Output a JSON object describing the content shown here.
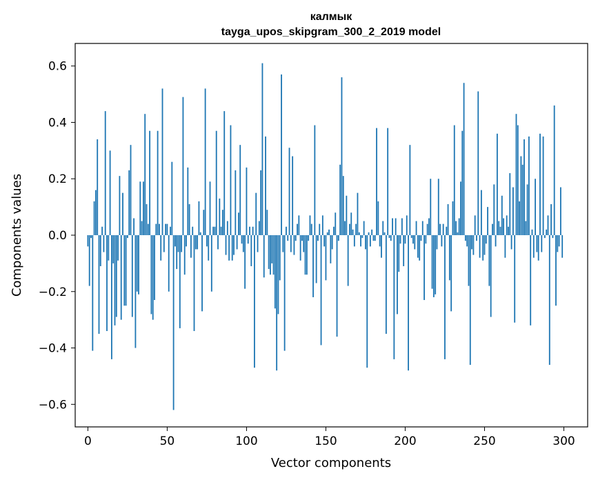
{
  "chart_data": {
    "type": "bar",
    "title_line1": "калмык",
    "title_line2": "tayga_upos_skipgram_300_2_2019 model",
    "xlabel": "Vector components",
    "ylabel": "Components values",
    "xlim": [
      -8,
      315
    ],
    "ylim": [
      -0.68,
      0.68
    ],
    "xticks": [
      0,
      50,
      100,
      150,
      200,
      250,
      300
    ],
    "xtick_labels": [
      "0",
      "50",
      "100",
      "150",
      "200",
      "250",
      "300"
    ],
    "yticks": [
      -0.6,
      -0.4,
      -0.2,
      0.0,
      0.2,
      0.4,
      0.6
    ],
    "ytick_labels": [
      "−0.6",
      "−0.4",
      "−0.2",
      "0.0",
      "0.2",
      "0.4",
      "0.6"
    ],
    "bar_color": "#1f77b4",
    "values": [
      -0.04,
      -0.18,
      -0.01,
      -0.41,
      0.12,
      0.16,
      0.34,
      -0.35,
      -0.11,
      0.03,
      -0.06,
      0.44,
      -0.34,
      -0.09,
      0.3,
      -0.44,
      -0.1,
      -0.32,
      -0.29,
      -0.09,
      0.21,
      -0.3,
      0.15,
      -0.25,
      -0.25,
      -0.01,
      0.23,
      0.32,
      -0.29,
      0.06,
      -0.4,
      -0.2,
      -0.21,
      0.19,
      0.05,
      0.19,
      0.43,
      0.11,
      0.04,
      0.37,
      -0.28,
      -0.3,
      -0.23,
      0.04,
      0.37,
      0.04,
      -0.09,
      0.52,
      -0.06,
      0.04,
      0.04,
      -0.2,
      0.03,
      0.26,
      -0.62,
      -0.04,
      -0.12,
      -0.06,
      -0.33,
      -0.06,
      0.49,
      -0.14,
      -0.04,
      0.24,
      0.11,
      -0.08,
      0.03,
      -0.34,
      -0.05,
      -0.05,
      0.12,
      0.01,
      -0.27,
      0.09,
      0.52,
      -0.04,
      -0.09,
      0.19,
      -0.2,
      0.03,
      0.03,
      0.37,
      -0.05,
      0.13,
      0.03,
      0.09,
      0.44,
      -0.07,
      0.05,
      -0.09,
      0.39,
      -0.09,
      -0.07,
      0.23,
      -0.05,
      0.08,
      0.32,
      -0.03,
      -0.06,
      -0.19,
      0.24,
      -0.03,
      0.03,
      -0.11,
      0.03,
      -0.47,
      0.15,
      -0.06,
      0.05,
      0.23,
      0.61,
      -0.15,
      0.35,
      0.09,
      -0.12,
      -0.14,
      -0.1,
      -0.14,
      -0.26,
      -0.48,
      -0.28,
      -0.16,
      0.57,
      -0.06,
      -0.41,
      0.03,
      -0.02,
      0.31,
      -0.06,
      0.28,
      -0.07,
      -0.02,
      0.04,
      0.07,
      -0.09,
      -0.02,
      -0.06,
      -0.14,
      -0.14,
      -0.02,
      0.07,
      0.04,
      -0.22,
      0.39,
      -0.17,
      -0.02,
      0.04,
      -0.39,
      0.07,
      -0.04,
      -0.16,
      0.01,
      0.02,
      -0.1,
      -0.05,
      0.03,
      0.08,
      -0.36,
      -0.02,
      0.25,
      0.56,
      0.21,
      0.05,
      0.14,
      -0.18,
      0.04,
      0.08,
      0.02,
      -0.04,
      0.04,
      0.15,
      0.01,
      -0.04,
      -0.01,
      0.05,
      -0.05,
      -0.47,
      0.01,
      -0.04,
      0.02,
      -0.02,
      -0.02,
      0.38,
      0.12,
      -0.04,
      -0.08,
      0.05,
      0.01,
      -0.35,
      0.38,
      -0.01,
      -0.02,
      0.06,
      -0.44,
      0.06,
      -0.28,
      -0.13,
      -0.03,
      0.06,
      -0.11,
      -0.03,
      0.07,
      -0.48,
      0.32,
      -0.01,
      -0.03,
      -0.05,
      0.05,
      -0.08,
      -0.09,
      -0.02,
      0.05,
      -0.23,
      -0.03,
      0.04,
      0.06,
      0.2,
      -0.19,
      -0.22,
      -0.21,
      -0.05,
      0.2,
      0.04,
      -0.04,
      0.04,
      -0.44,
      0.03,
      0.11,
      -0.16,
      -0.27,
      0.12,
      0.39,
      0.05,
      0.01,
      0.06,
      0.19,
      0.37,
      0.54,
      -0.02,
      -0.04,
      -0.18,
      -0.46,
      -0.05,
      -0.07,
      0.07,
      -0.02,
      0.51,
      -0.08,
      0.16,
      -0.09,
      -0.07,
      -0.03,
      0.1,
      -0.18,
      -0.29,
      0.04,
      0.18,
      -0.04,
      0.36,
      0.05,
      0.03,
      0.14,
      0.06,
      -0.08,
      0.07,
      0.03,
      0.22,
      -0.05,
      0.17,
      -0.31,
      0.43,
      0.39,
      0.12,
      0.28,
      0.25,
      0.34,
      0.05,
      0.18,
      0.35,
      -0.32,
      0.02,
      -0.08,
      0.2,
      -0.06,
      -0.09,
      0.36,
      -0.06,
      0.35,
      -0.01,
      0.02,
      0.07,
      -0.46,
      0.11,
      -0.01,
      0.46,
      -0.25,
      -0.06,
      -0.04,
      0.17,
      -0.08
    ]
  }
}
